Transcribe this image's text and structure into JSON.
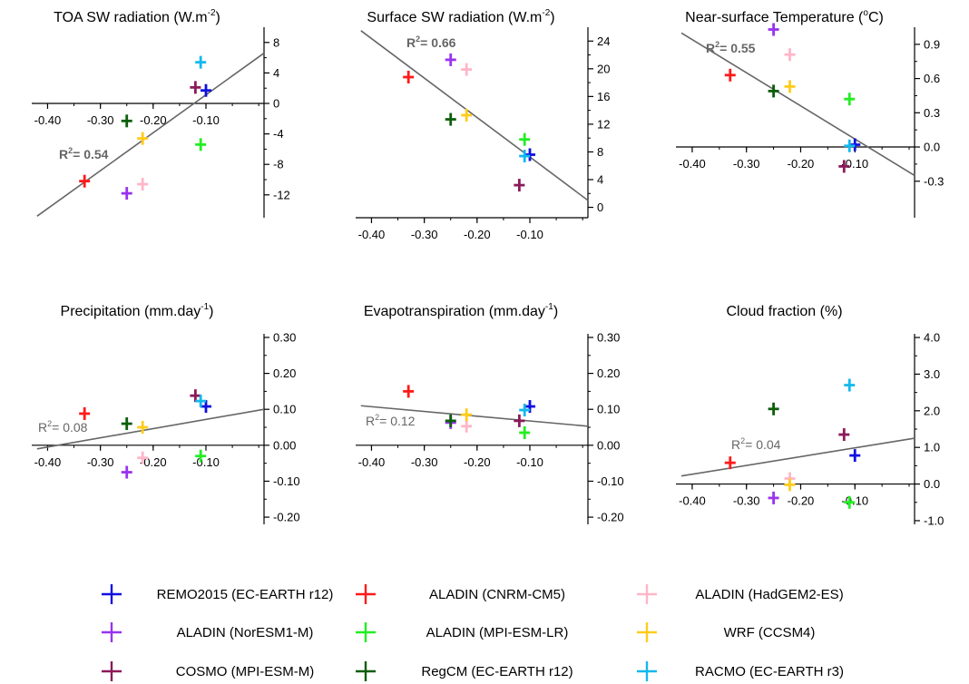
{
  "colors": {
    "REMO2015 (EC-EARTH r12)": "#1010e0",
    "ALADIN (CNRM-CM5)": "#ff1a1a",
    "ALADIN (HadGEM2-ES)": "#ffb6c8",
    "ALADIN (NorESM1-M)": "#9933ee",
    "ALADIN (MPI-ESM-LR)": "#22ee22",
    "WRF (CCSM4)": "#ffcc1a",
    "COSMO (MPI-ESM-M)": "#8b1a5a",
    "RegCM (EC-EARTH r12)": "#0b5e0b",
    "RACMO (EC-EARTH r3)": "#14b8ee",
    "regression_line": "#666666"
  },
  "legend": [
    "REMO2015 (EC-EARTH r12)",
    "ALADIN (CNRM-CM5)",
    "ALADIN (HadGEM2-ES)",
    "ALADIN (NorESM1-M)",
    "ALADIN (MPI-ESM-LR)",
    "WRF (CCSM4)",
    "COSMO (MPI-ESM-M)",
    "RegCM (EC-EARTH r12)",
    "RACMO (EC-EARTH r3)"
  ],
  "chart_data": [
    {
      "type": "scatter",
      "title": "TOA SW radiation (W.m-2)",
      "title_main": "TOA SW radiation (W.m",
      "title_sup": "-2",
      "title_end": ")",
      "r2_label": "R",
      "r2_sup": "2",
      "r2_value": "= 0.54",
      "r2_bold": true,
      "x_ticks": [
        -0.4,
        -0.3,
        -0.2,
        -0.1
      ],
      "x_tick_labels": [
        "-0.40",
        "-0.30",
        "-0.20",
        "-0.10"
      ],
      "y_ticks": [
        8,
        4,
        0,
        -4,
        -8,
        -12
      ],
      "y_tick_labels": [
        "8",
        "4",
        "0",
        "-4",
        "-8",
        "-12"
      ],
      "xlim": [
        -0.43,
        0.01
      ],
      "ylim": [
        -15,
        10
      ],
      "y_cross": 0,
      "grid": false,
      "y_axis_side": "right",
      "line": [
        [
          -0.42,
          -14.8
        ],
        [
          0.01,
          6.6
        ]
      ],
      "points": [
        {
          "model": "REMO2015 (EC-EARTH r12)",
          "x": -0.1,
          "y": 1.7
        },
        {
          "model": "ALADIN (CNRM-CM5)",
          "x": -0.33,
          "y": -10.2
        },
        {
          "model": "ALADIN (HadGEM2-ES)",
          "x": -0.22,
          "y": -10.6
        },
        {
          "model": "ALADIN (NorESM1-M)",
          "x": -0.25,
          "y": -11.8
        },
        {
          "model": "ALADIN (MPI-ESM-LR)",
          "x": -0.11,
          "y": -5.4
        },
        {
          "model": "WRF (CCSM4)",
          "x": -0.22,
          "y": -4.6
        },
        {
          "model": "COSMO (MPI-ESM-M)",
          "x": -0.12,
          "y": 2.1
        },
        {
          "model": "RegCM (EC-EARTH r12)",
          "x": -0.25,
          "y": -2.3
        },
        {
          "model": "RACMO (EC-EARTH r3)",
          "x": -0.11,
          "y": 5.4
        }
      ]
    },
    {
      "type": "scatter",
      "title": "Surface SW radiation (W.m-2)",
      "title_main": "Surface SW radiation (W.m",
      "title_sup": "-2",
      "title_end": ")",
      "r2_label": "R",
      "r2_sup": "2",
      "r2_value": "= 0.66",
      "r2_bold": true,
      "x_ticks": [
        -0.4,
        -0.3,
        -0.2,
        -0.1
      ],
      "x_tick_labels": [
        "-0.40",
        "-0.30",
        "-0.20",
        "-0.10"
      ],
      "y_ticks": [
        24,
        20,
        16,
        12,
        8,
        4,
        0
      ],
      "y_tick_labels": [
        "24",
        "20",
        "16",
        "12",
        "8",
        "4",
        "0"
      ],
      "xlim": [
        -0.43,
        0.01
      ],
      "ylim": [
        -1.5,
        26
      ],
      "y_cross": -1.5,
      "grid": false,
      "y_axis_side": "right",
      "line": [
        [
          -0.42,
          25.5
        ],
        [
          0.01,
          1.0
        ]
      ],
      "points": [
        {
          "model": "REMO2015 (EC-EARTH r12)",
          "x": -0.1,
          "y": 7.6
        },
        {
          "model": "ALADIN (CNRM-CM5)",
          "x": -0.33,
          "y": 18.8
        },
        {
          "model": "ALADIN (HadGEM2-ES)",
          "x": -0.22,
          "y": 19.9
        },
        {
          "model": "ALADIN (NorESM1-M)",
          "x": -0.25,
          "y": 21.3
        },
        {
          "model": "ALADIN (MPI-ESM-LR)",
          "x": -0.11,
          "y": 9.8
        },
        {
          "model": "WRF (CCSM4)",
          "x": -0.22,
          "y": 13.3
        },
        {
          "model": "COSMO (MPI-ESM-M)",
          "x": -0.12,
          "y": 3.2
        },
        {
          "model": "RegCM (EC-EARTH r12)",
          "x": -0.25,
          "y": 12.7
        },
        {
          "model": "RACMO (EC-EARTH r3)",
          "x": -0.11,
          "y": 7.4
        }
      ]
    },
    {
      "type": "scatter",
      "title": "Near-surface Temperature (°C)",
      "title_main": "Near-surface Temperature (",
      "title_sup": "o",
      "title_end": "C)",
      "r2_label": "R",
      "r2_sup": "2",
      "r2_value": "= 0.55",
      "r2_bold": true,
      "x_ticks": [
        -0.4,
        -0.3,
        -0.2,
        -0.1
      ],
      "x_tick_labels": [
        "-0.40",
        "-0.30",
        "-0.20",
        "-0.10"
      ],
      "y_ticks": [
        0.9,
        0.6,
        0.3,
        0.0,
        -0.3
      ],
      "y_tick_labels": [
        "0.9",
        "0.6",
        "0.3",
        "0.0",
        "-0.3"
      ],
      "xlim": [
        -0.43,
        0.01
      ],
      "ylim": [
        -0.62,
        1.05
      ],
      "y_cross": 0,
      "grid": false,
      "y_axis_side": "right",
      "line": [
        [
          -0.42,
          1.0
        ],
        [
          0.01,
          -0.25
        ]
      ],
      "points": [
        {
          "model": "REMO2015 (EC-EARTH r12)",
          "x": -0.1,
          "y": 0.02
        },
        {
          "model": "ALADIN (CNRM-CM5)",
          "x": -0.33,
          "y": 0.63
        },
        {
          "model": "ALADIN (HadGEM2-ES)",
          "x": -0.22,
          "y": 0.81
        },
        {
          "model": "ALADIN (NorESM1-M)",
          "x": -0.25,
          "y": 1.03
        },
        {
          "model": "ALADIN (MPI-ESM-LR)",
          "x": -0.11,
          "y": 0.42
        },
        {
          "model": "WRF (CCSM4)",
          "x": -0.22,
          "y": 0.53
        },
        {
          "model": "COSMO (MPI-ESM-M)",
          "x": -0.12,
          "y": -0.17
        },
        {
          "model": "RegCM (EC-EARTH r12)",
          "x": -0.25,
          "y": 0.49
        },
        {
          "model": "RACMO (EC-EARTH r3)",
          "x": -0.11,
          "y": 0.01
        }
      ]
    },
    {
      "type": "scatter",
      "title": "Precipitation (mm.day-1)",
      "title_main": "Precipitation (mm.day",
      "title_sup": "-1",
      "title_end": ")",
      "r2_label": "R",
      "r2_sup": "2",
      "r2_value": "= 0.08",
      "r2_bold": false,
      "x_ticks": [
        -0.4,
        -0.3,
        -0.2,
        -0.1
      ],
      "x_tick_labels": [
        "-0.40",
        "-0.30",
        "-0.20",
        "-0.10"
      ],
      "y_ticks": [
        0.3,
        0.2,
        0.1,
        0.0,
        -0.1,
        -0.2
      ],
      "y_tick_labels": [
        "0.30",
        "0.20",
        "0.10",
        "0.00",
        "-0.10",
        "-0.20"
      ],
      "xlim": [
        -0.43,
        0.01
      ],
      "ylim": [
        -0.22,
        0.31
      ],
      "y_cross": 0,
      "grid": false,
      "y_axis_side": "right",
      "line": [
        [
          -0.42,
          -0.01
        ],
        [
          0.01,
          0.1
        ]
      ],
      "points": [
        {
          "model": "REMO2015 (EC-EARTH r12)",
          "x": -0.1,
          "y": 0.108
        },
        {
          "model": "ALADIN (CNRM-CM5)",
          "x": -0.33,
          "y": 0.088
        },
        {
          "model": "ALADIN (HadGEM2-ES)",
          "x": -0.22,
          "y": -0.035
        },
        {
          "model": "ALADIN (NorESM1-M)",
          "x": -0.25,
          "y": -0.075
        },
        {
          "model": "ALADIN (MPI-ESM-LR)",
          "x": -0.11,
          "y": -0.03
        },
        {
          "model": "WRF (CCSM4)",
          "x": -0.22,
          "y": 0.05
        },
        {
          "model": "COSMO (MPI-ESM-M)",
          "x": -0.12,
          "y": 0.138
        },
        {
          "model": "RegCM (EC-EARTH r12)",
          "x": -0.25,
          "y": 0.06
        },
        {
          "model": "RACMO (EC-EARTH r3)",
          "x": -0.11,
          "y": 0.123
        }
      ]
    },
    {
      "type": "scatter",
      "title": "Evapotranspiration (mm.day-1)",
      "title_main": "Evapotranspiration (mm.day",
      "title_sup": "-1",
      "title_end": ")",
      "r2_label": "R",
      "r2_sup": "2",
      "r2_value": "= 0.12",
      "r2_bold": false,
      "x_ticks": [
        -0.4,
        -0.3,
        -0.2,
        -0.1
      ],
      "x_tick_labels": [
        "-0.40",
        "-0.30",
        "-0.20",
        "-0.10"
      ],
      "y_ticks": [
        0.3,
        0.2,
        0.1,
        0.0,
        -0.1,
        -0.2
      ],
      "y_tick_labels": [
        "0.30",
        "0.20",
        "0.10",
        "0.00",
        "-0.10",
        "-0.20"
      ],
      "xlim": [
        -0.43,
        0.01
      ],
      "ylim": [
        -0.22,
        0.31
      ],
      "y_cross": 0,
      "grid": false,
      "y_axis_side": "right",
      "line": [
        [
          -0.42,
          0.11
        ],
        [
          0.01,
          0.053
        ]
      ],
      "points": [
        {
          "model": "REMO2015 (EC-EARTH r12)",
          "x": -0.1,
          "y": 0.108
        },
        {
          "model": "ALADIN (CNRM-CM5)",
          "x": -0.33,
          "y": 0.15
        },
        {
          "model": "ALADIN (HadGEM2-ES)",
          "x": -0.22,
          "y": 0.053
        },
        {
          "model": "ALADIN (NorESM1-M)",
          "x": -0.25,
          "y": 0.063
        },
        {
          "model": "ALADIN (MPI-ESM-LR)",
          "x": -0.11,
          "y": 0.035
        },
        {
          "model": "WRF (CCSM4)",
          "x": -0.22,
          "y": 0.085
        },
        {
          "model": "COSMO (MPI-ESM-M)",
          "x": -0.12,
          "y": 0.068
        },
        {
          "model": "RegCM (EC-EARTH r12)",
          "x": -0.25,
          "y": 0.068
        },
        {
          "model": "RACMO (EC-EARTH r3)",
          "x": -0.11,
          "y": 0.098
        }
      ]
    },
    {
      "type": "scatter",
      "title": "Cloud fraction (%)",
      "title_main": "Cloud fraction (%)",
      "title_sup": "",
      "title_end": "",
      "r2_label": "R",
      "r2_sup": "2",
      "r2_value": "= 0.04",
      "r2_bold": false,
      "x_ticks": [
        -0.4,
        -0.3,
        -0.2,
        -0.1
      ],
      "x_tick_labels": [
        "-0.40",
        "-0.30",
        "-0.20",
        "-0.10"
      ],
      "y_ticks": [
        4.0,
        3.0,
        2.0,
        1.0,
        0.0,
        -1.0
      ],
      "y_tick_labels": [
        "4.0",
        "3.0",
        "2.0",
        "1.0",
        "0.0",
        "-1.0"
      ],
      "xlim": [
        -0.43,
        0.01
      ],
      "ylim": [
        -1.1,
        4.1
      ],
      "y_cross": 0,
      "grid": false,
      "y_axis_side": "right",
      "line": [
        [
          -0.42,
          0.22
        ],
        [
          0.01,
          1.25
        ]
      ],
      "points": [
        {
          "model": "REMO2015 (EC-EARTH r12)",
          "x": -0.1,
          "y": 0.78
        },
        {
          "model": "ALADIN (CNRM-CM5)",
          "x": -0.33,
          "y": 0.58
        },
        {
          "model": "ALADIN (HadGEM2-ES)",
          "x": -0.22,
          "y": 0.15
        },
        {
          "model": "ALADIN (NorESM1-M)",
          "x": -0.25,
          "y": -0.38
        },
        {
          "model": "ALADIN (MPI-ESM-LR)",
          "x": -0.11,
          "y": -0.5
        },
        {
          "model": "WRF (CCSM4)",
          "x": -0.22,
          "y": -0.02
        },
        {
          "model": "COSMO (MPI-ESM-M)",
          "x": -0.12,
          "y": 1.35
        },
        {
          "model": "RegCM (EC-EARTH r12)",
          "x": -0.25,
          "y": 2.05
        },
        {
          "model": "RACMO (EC-EARTH r3)",
          "x": -0.11,
          "y": 2.7
        }
      ]
    }
  ]
}
